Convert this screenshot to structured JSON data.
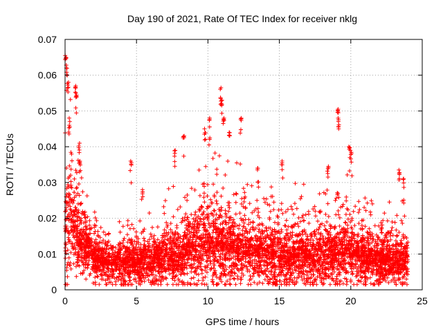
{
  "chart_data": {
    "type": "scatter",
    "title": "Day 190 of 2021, Rate Of TEC Index for receiver nklg",
    "xlabel": "GPS time / hours",
    "ylabel": "ROTI / TECUs",
    "xlim": [
      0,
      25
    ],
    "ylim": [
      0,
      0.07
    ],
    "x_ticks": [
      "0",
      "5",
      "10",
      "15",
      "20",
      "25"
    ],
    "y_ticks": [
      "0",
      "0.01",
      "0.02",
      "0.03",
      "0.04",
      "0.05",
      "0.06",
      "0.07"
    ],
    "grid": true,
    "marker": "+",
    "marker_color": "#ff0000",
    "series": [
      {
        "x_start": 0,
        "x_end": 24,
        "envelope": {
          "hours": [
            0,
            0.1,
            0.2,
            0.4,
            0.6,
            0.8,
            1.0,
            1.3,
            1.6,
            2.0,
            2.5,
            3.0,
            3.5,
            4.0,
            4.5,
            5.0,
            5.5,
            6.0,
            6.5,
            7.0,
            7.5,
            8.0,
            8.5,
            9.0,
            9.5,
            10.0,
            10.5,
            11.0,
            11.5,
            12.0,
            12.5,
            13.0,
            13.5,
            14.0,
            14.5,
            15.0,
            15.5,
            16.0,
            16.5,
            17.0,
            17.5,
            18.0,
            18.5,
            19.0,
            19.5,
            20.0,
            20.5,
            21.0,
            21.5,
            22.0,
            22.5,
            23.0,
            23.5,
            24.0
          ],
          "median": [
            0.016,
            0.02,
            0.021,
            0.019,
            0.017,
            0.015,
            0.014,
            0.012,
            0.011,
            0.009,
            0.008,
            0.007,
            0.0068,
            0.007,
            0.0075,
            0.0075,
            0.0075,
            0.0078,
            0.008,
            0.0085,
            0.009,
            0.009,
            0.01,
            0.011,
            0.012,
            0.013,
            0.012,
            0.012,
            0.011,
            0.0105,
            0.01,
            0.0098,
            0.0095,
            0.0095,
            0.0092,
            0.009,
            0.009,
            0.009,
            0.009,
            0.0088,
            0.009,
            0.009,
            0.0095,
            0.0098,
            0.0098,
            0.0095,
            0.009,
            0.0088,
            0.0085,
            0.008,
            0.0078,
            0.0078,
            0.008,
            0.008
          ],
          "spread": [
            0.016,
            0.02,
            0.018,
            0.014,
            0.012,
            0.011,
            0.01,
            0.009,
            0.008,
            0.007,
            0.0065,
            0.006,
            0.0058,
            0.006,
            0.0065,
            0.0065,
            0.0065,
            0.0068,
            0.007,
            0.0075,
            0.0085,
            0.009,
            0.01,
            0.011,
            0.012,
            0.013,
            0.013,
            0.012,
            0.011,
            0.01,
            0.0095,
            0.0092,
            0.009,
            0.009,
            0.0088,
            0.0088,
            0.0085,
            0.0085,
            0.0085,
            0.0082,
            0.0085,
            0.0085,
            0.009,
            0.0095,
            0.0092,
            0.009,
            0.0085,
            0.0082,
            0.008,
            0.0075,
            0.0072,
            0.007,
            0.0072,
            0.007
          ]
        },
        "peaks": [
          {
            "x": 0.05,
            "y": 0.0655
          },
          {
            "x": 0.12,
            "y": 0.062
          },
          {
            "x": 0.2,
            "y": 0.058
          },
          {
            "x": 0.3,
            "y": 0.048
          },
          {
            "x": 0.72,
            "y": 0.057
          },
          {
            "x": 0.78,
            "y": 0.055
          },
          {
            "x": 1.0,
            "y": 0.041
          },
          {
            "x": 1.05,
            "y": 0.036
          },
          {
            "x": 4.6,
            "y": 0.036
          },
          {
            "x": 5.4,
            "y": 0.028
          },
          {
            "x": 7.7,
            "y": 0.039
          },
          {
            "x": 8.3,
            "y": 0.043
          },
          {
            "x": 9.8,
            "y": 0.045
          },
          {
            "x": 10.1,
            "y": 0.048
          },
          {
            "x": 10.9,
            "y": 0.0565
          },
          {
            "x": 10.95,
            "y": 0.053
          },
          {
            "x": 11.1,
            "y": 0.048
          },
          {
            "x": 11.5,
            "y": 0.044
          },
          {
            "x": 12.3,
            "y": 0.048
          },
          {
            "x": 13.5,
            "y": 0.034
          },
          {
            "x": 15.2,
            "y": 0.036
          },
          {
            "x": 18.4,
            "y": 0.0345
          },
          {
            "x": 19.1,
            "y": 0.0505
          },
          {
            "x": 19.15,
            "y": 0.048
          },
          {
            "x": 19.9,
            "y": 0.04
          },
          {
            "x": 20.0,
            "y": 0.039
          },
          {
            "x": 23.4,
            "y": 0.0335
          },
          {
            "x": 23.7,
            "y": 0.031
          }
        ]
      }
    ]
  }
}
